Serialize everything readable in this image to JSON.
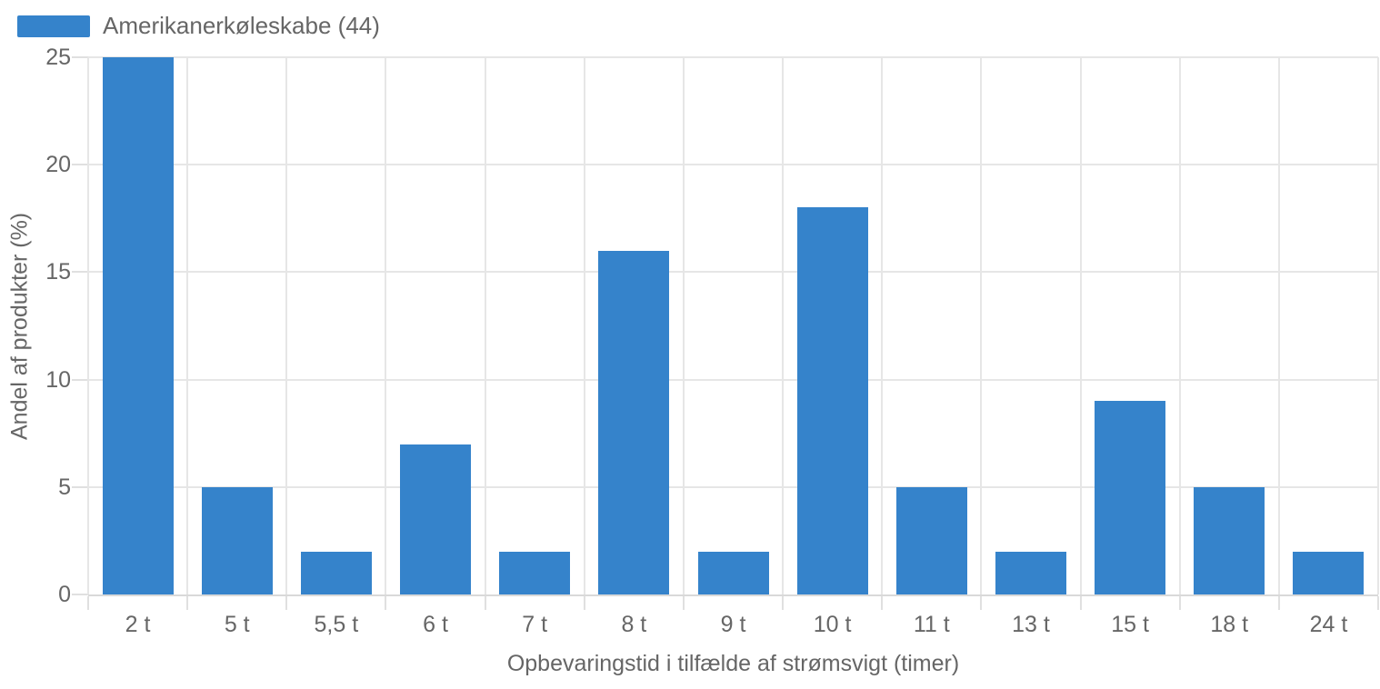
{
  "chart_data": {
    "type": "bar",
    "title": "",
    "categories": [
      "2 t",
      "5 t",
      "5,5 t",
      "6 t",
      "7 t",
      "8 t",
      "9 t",
      "10 t",
      "11 t",
      "13 t",
      "15 t",
      "18 t",
      "24 t"
    ],
    "series": [
      {
        "name": "Amerikanerkøleskabe (44)",
        "values": [
          25,
          5,
          2,
          7,
          2,
          16,
          2,
          18,
          5,
          2,
          9,
          5,
          2
        ]
      }
    ],
    "xlabel": "Opbevaringstid i tilfælde af strømsvigt (timer)",
    "ylabel": "Andel af produkter (%)",
    "ylim": [
      0,
      25
    ],
    "yticks": [
      0,
      5,
      10,
      15,
      20,
      25
    ],
    "grid": true,
    "legend_position": "top-left",
    "colors": {
      "bar": "#3583cb",
      "grid": "#e6e6e6",
      "axis_line": "#d9d9d9",
      "tick": "#e0e0e0",
      "text": "#666666",
      "background": "#ffffff"
    }
  }
}
